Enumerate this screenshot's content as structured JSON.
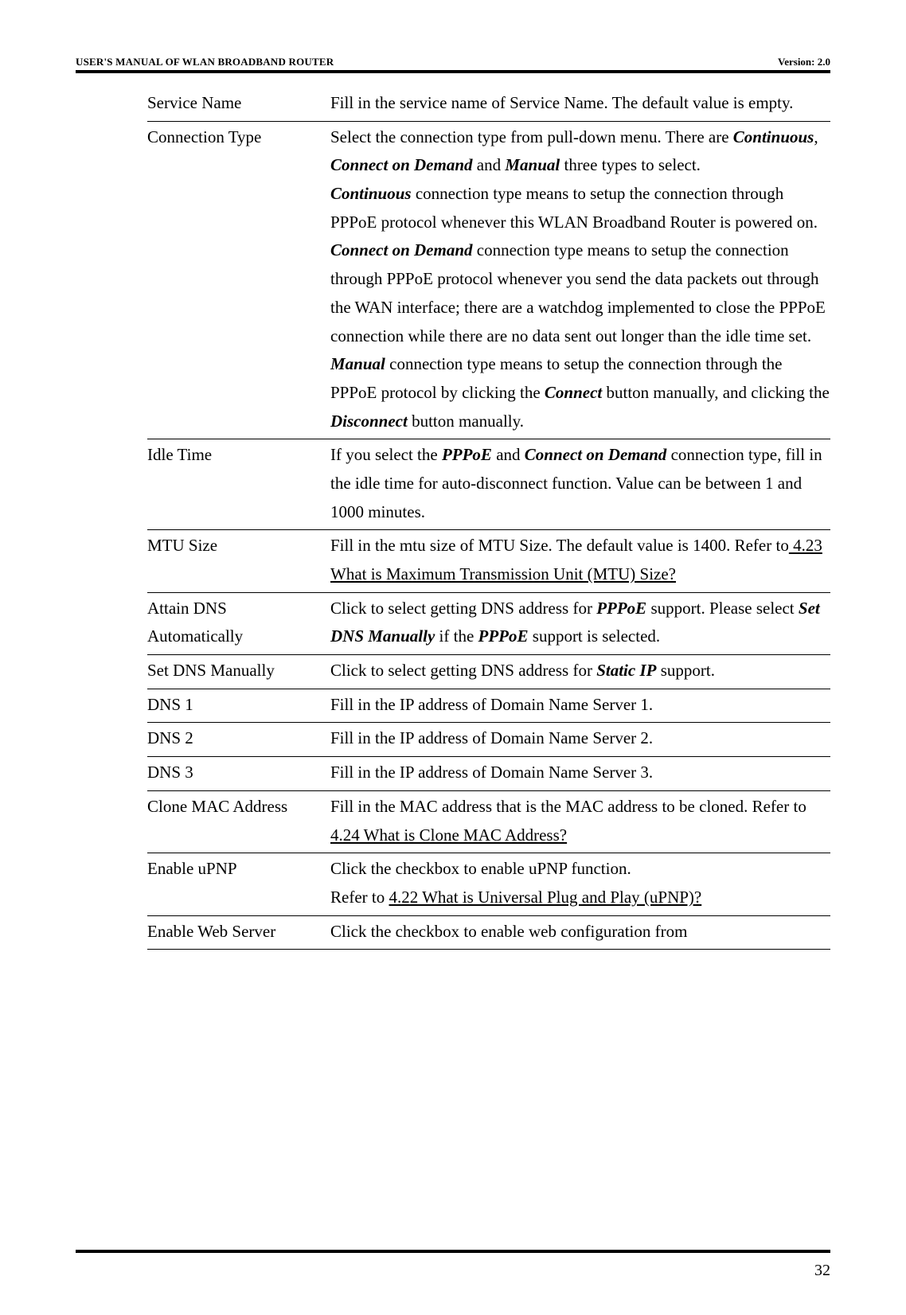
{
  "header": {
    "left": "USER'S MANUAL OF WLAN BROADBAND ROUTER",
    "right": "Version: 2.0"
  },
  "rows": {
    "service_name": {
      "term": "Service Name",
      "desc": "Fill in the service name of Service Name. The default value is empty."
    },
    "connection_type": {
      "term": "Connection Type",
      "p1_a": "Select the connection type from pull-down menu. There are ",
      "p1_b": "Continuous",
      "p1_c": ", ",
      "p1_d": "Connect on Demand",
      "p1_e": " and ",
      "p1_f": "Manual",
      "p1_g": " three types to select.",
      "p2_a": "Continuous",
      "p2_b": " connection type means to setup the connection through PPPoE protocol whenever this WLAN Broadband Router is powered on.",
      "p3_a": "Connect on Demand",
      "p3_b": " connection type means to setup the connection through PPPoE protocol whenever you send the data packets out through the WAN interface; there are a watchdog implemented to close the PPPoE connection while there are no data sent out longer than the idle time set.",
      "p4_a": "Manual",
      "p4_b": " connection type means to setup the connection through the PPPoE protocol by clicking the ",
      "p4_c": "Connect",
      "p4_d": " button manually, and clicking the ",
      "p4_e": "Disconnect",
      "p4_f": " button manually."
    },
    "idle_time": {
      "term": "Idle Time",
      "a": "If you select the ",
      "b": "PPPoE",
      "c": " and ",
      "d": "Connect on Demand",
      "e": " connection type, fill in the idle time for auto-disconnect function. Value can be between 1 and 1000 minutes."
    },
    "mtu_size": {
      "term": "MTU Size",
      "a": "Fill in the mtu size of MTU Size. The default value is 1400. Refer to",
      "b": " 4.23 What is Maximum Transmission Unit (MTU) Size?"
    },
    "attain_dns": {
      "term1": "Attain DNS",
      "term2": "Automatically",
      "a": "Click to select getting DNS address for ",
      "b": "PPPoE",
      "c": " support. Please select ",
      "d": "Set DNS Manually",
      "e": " if the ",
      "f": "PPPoE",
      "g": " support is selected."
    },
    "set_dns": {
      "term": "Set DNS Manually",
      "a": "Click to select getting DNS address for ",
      "b": "Static IP",
      "c": " support."
    },
    "dns1": {
      "term": "DNS 1",
      "desc": "Fill in the IP address of Domain Name Server 1."
    },
    "dns2": {
      "term": "DNS 2",
      "desc": "Fill in the IP address of Domain Name Server 2."
    },
    "dns3": {
      "term": "DNS 3",
      "desc": "Fill in the IP address of Domain Name Server 3."
    },
    "clone_mac": {
      "term": "Clone MAC Address",
      "a": "Fill in the MAC address that is the MAC address to be cloned. Refer to ",
      "b": "4.24 What is Clone MAC Address?"
    },
    "enable_upnp": {
      "term": "Enable uPNP",
      "a": "Click the checkbox to enable uPNP function.",
      "b": "Refer to ",
      "c": "4.22 What is Universal Plug and Play (uPNP)?"
    },
    "enable_web": {
      "term": "Enable Web Server",
      "desc": "Click the checkbox to enable web configuration from"
    }
  },
  "page_number": "32"
}
